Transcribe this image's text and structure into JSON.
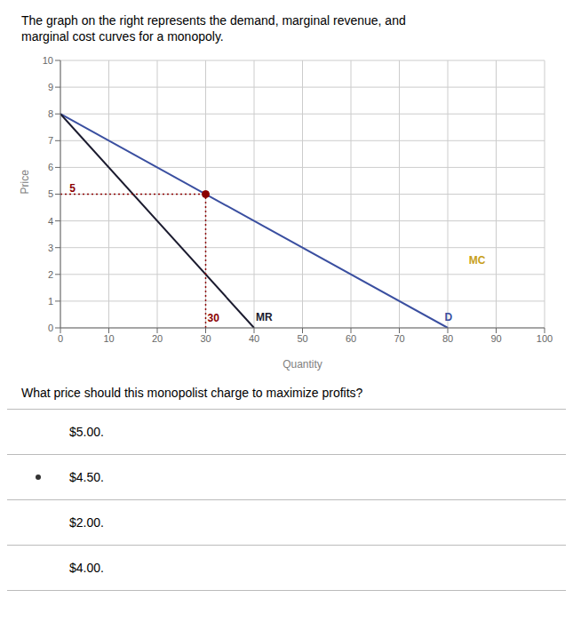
{
  "chart_data": {
    "type": "line",
    "title": [
      "The graph on the right represents the demand, marginal revenue, and",
      "marginal cost curves for a monopoly."
    ],
    "xlabel": "Quantity",
    "ylabel": "Price",
    "xlim": [
      0,
      100
    ],
    "ylim": [
      0,
      10
    ],
    "xticks": [
      0,
      10,
      20,
      30,
      40,
      50,
      60,
      70,
      80,
      90,
      100
    ],
    "yticks": [
      0,
      1,
      2,
      3,
      4,
      5,
      6,
      7,
      8,
      9,
      10
    ],
    "grid": true,
    "series": [
      {
        "name": "D",
        "color": "#3a4fa0",
        "x": [
          0,
          80
        ],
        "values": [
          8,
          0
        ]
      },
      {
        "name": "MR",
        "color": "#1a1a2e",
        "x": [
          0,
          40
        ],
        "values": [
          8,
          0
        ]
      }
    ],
    "reference_lines": [
      {
        "x": [
          0,
          30
        ],
        "y": [
          5,
          5
        ],
        "color": "#8b0000",
        "line_style": "dotted"
      },
      {
        "x": [
          30,
          30
        ],
        "y": [
          0,
          5
        ],
        "color": "#8b0000",
        "line_style": "dotted"
      }
    ],
    "points": [
      {
        "x": 30,
        "y": 5,
        "color": "#8b0000"
      }
    ],
    "annotations": [
      {
        "text": "D",
        "x": 79,
        "y": 0.15,
        "color": "#3a4fa0"
      },
      {
        "text": "MR",
        "x": 40,
        "y": 0.15,
        "color": "#1a1a2e"
      },
      {
        "text": "MC",
        "x": 84,
        "y": 2.3,
        "color": "#c8a020"
      },
      {
        "text": "5",
        "x": 1.5,
        "y": 5,
        "color": "#8b0000"
      },
      {
        "text": "30",
        "x": 30,
        "y": 0.12,
        "color": "#8b0000"
      }
    ],
    "question": "What price should this monopolist charge to maximize profits?",
    "options": [
      "$5.00.",
      "$4.50.",
      "$2.00.",
      "$4.00."
    ],
    "selected_option": 1
  }
}
